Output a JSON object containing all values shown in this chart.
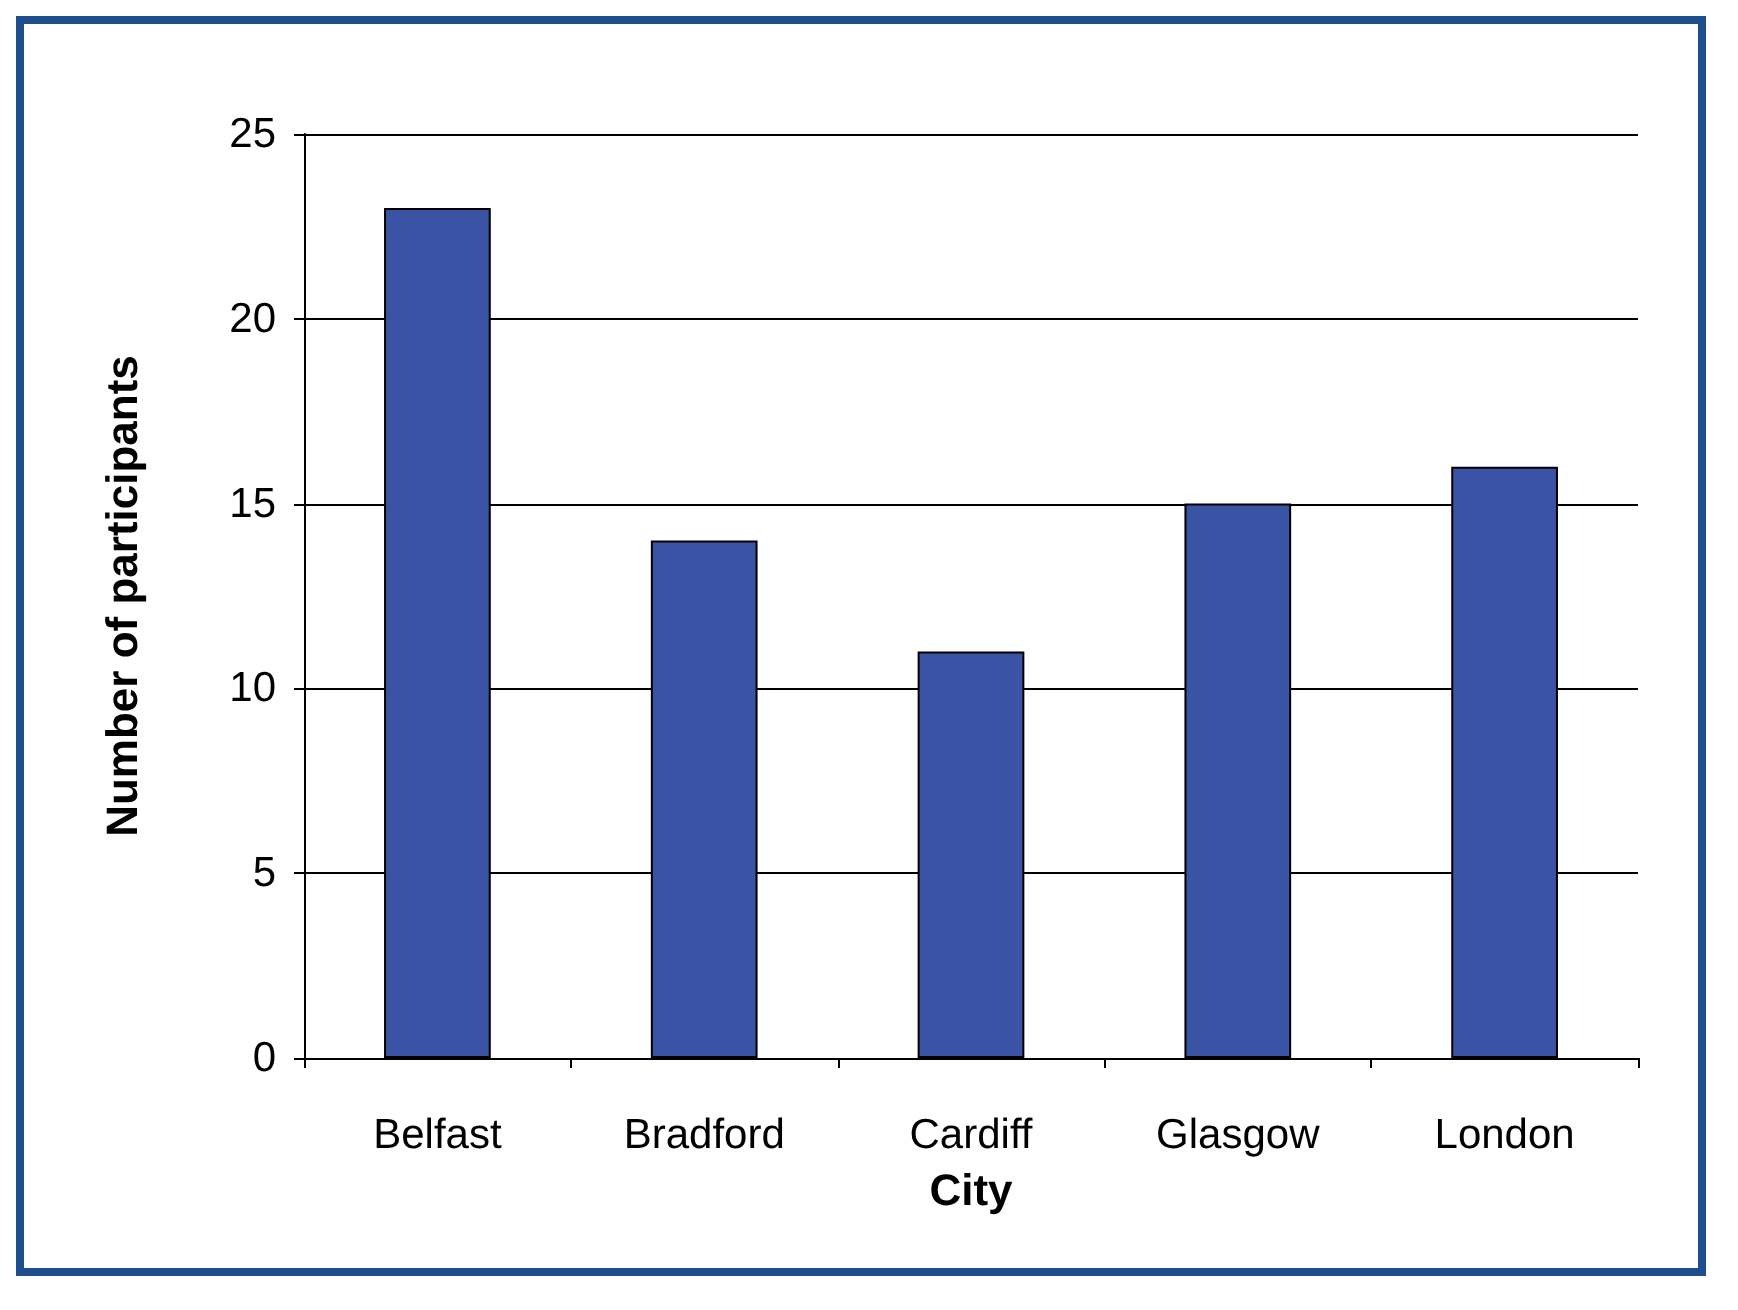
{
  "chart_data": {
    "type": "bar",
    "xlabel": "City",
    "ylabel": "Number of participants",
    "categories": [
      "Belfast",
      "Bradford",
      "Cardiff",
      "Glasgow",
      "London"
    ],
    "values": [
      23,
      14,
      11,
      15,
      16
    ],
    "color": "#3a53a4",
    "ylim": [
      0,
      25
    ],
    "yticks": [
      0,
      5,
      10,
      15,
      20,
      25
    ],
    "grid": "y"
  }
}
